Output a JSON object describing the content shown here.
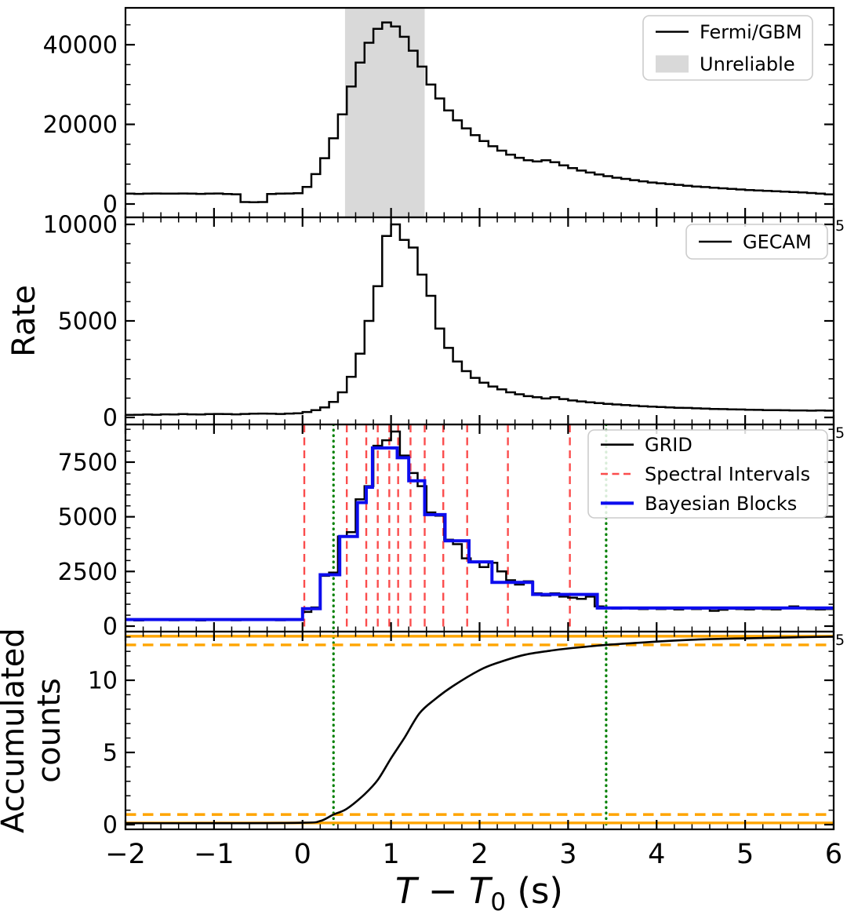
{
  "figure": {
    "xlabel": "T − T0 (s)",
    "xlabel_parts": [
      "T",
      " − ",
      "T",
      "0",
      " (s)"
    ],
    "x_range": [
      -2,
      6
    ],
    "x_tick_values": [
      -2,
      -1,
      0,
      1,
      2,
      3,
      4,
      5,
      6
    ],
    "x_tick_labels": [
      "−2",
      "−1",
      "0",
      "1",
      "2",
      "3",
      "4",
      "5",
      "6"
    ],
    "axis_offset_glyph": "5"
  },
  "colors": {
    "histogram": "#000000",
    "unreliable_fill": "#d9d9d9",
    "spectral_interval": "#fb4d4d",
    "bayesian_blocks": "#0d0dee",
    "t90_line": "#008000",
    "accumulation_bounds": "#ffa500",
    "legend_border": "#cccccc",
    "legend_bg": "#ffffff"
  },
  "panels": [
    {
      "id": "fermi",
      "ylabel": "",
      "y_tick_values": [
        0,
        20000,
        40000
      ],
      "y_tick_labels": [
        "0",
        "20000",
        "40000"
      ],
      "ylim": [
        -3400,
        49700
      ],
      "legend": [
        {
          "label": "Fermi/GBM",
          "swatch": "line",
          "color": "#000000"
        },
        {
          "label": "Unreliable",
          "swatch": "patch",
          "color": "#d9d9d9"
        }
      ]
    },
    {
      "id": "gecam",
      "ylabel": "Rate",
      "y_tick_values": [
        0,
        5000,
        10000
      ],
      "y_tick_labels": [
        "0",
        "5000",
        "10000"
      ],
      "ylim": [
        -370,
        10370
      ],
      "legend": [
        {
          "label": "GECAM",
          "swatch": "line",
          "color": "#000000"
        }
      ]
    },
    {
      "id": "grid",
      "ylabel": "",
      "y_tick_values": [
        0,
        2500,
        5000,
        7500
      ],
      "y_tick_labels": [
        "0",
        "2500",
        "5000",
        "7500"
      ],
      "ylim": [
        -250,
        9220
      ],
      "legend": [
        {
          "label": "GRID",
          "swatch": "line",
          "color": "#000000"
        },
        {
          "label": "Spectral Intervals",
          "swatch": "dashed",
          "color": "#fb4d4d"
        },
        {
          "label": "Bayesian Blocks",
          "swatch": "thickline",
          "color": "#0d0dee"
        }
      ]
    },
    {
      "id": "accumulated",
      "ylabel": "",
      "ylabel_lines": [
        "Accumulated",
        "counts"
      ],
      "y_tick_values": [
        0,
        5,
        10
      ],
      "y_tick_labels": [
        "0",
        "5",
        "10"
      ],
      "ylim": [
        -0.33,
        13.37
      ],
      "legend": []
    }
  ],
  "chart_data": [
    {
      "type": "histogram",
      "name": "Fermi/GBM",
      "bin_start": -2.0,
      "bin_width": 0.1,
      "rate": [
        2600,
        2550,
        2600,
        2650,
        2600,
        2600,
        2650,
        2600,
        2550,
        2600,
        2650,
        2500,
        2450,
        500,
        450,
        500,
        2500,
        2600,
        2650,
        2700,
        4300,
        7500,
        11500,
        16500,
        22500,
        29500,
        35500,
        40500,
        44000,
        45600,
        44600,
        42000,
        38500,
        34500,
        30000,
        26500,
        23500,
        21000,
        19000,
        17300,
        15800,
        14500,
        13400,
        12400,
        11600,
        11000,
        10700,
        11000,
        10500,
        9700,
        9000,
        8400,
        7900,
        7400,
        7000,
        6600,
        6300,
        6000,
        5700,
        5400,
        5200,
        5000,
        4800,
        4600,
        4400,
        4250,
        4100,
        3950,
        3800,
        3650,
        3500,
        3400,
        3300,
        3200,
        3100,
        3000,
        2900,
        2750,
        2600,
        2400
      ],
      "unreliable_interval": [
        0.48,
        1.38
      ]
    },
    {
      "type": "histogram",
      "name": "GECAM",
      "bin_start": -2.0,
      "bin_width": 0.1,
      "rate": [
        130,
        140,
        150,
        140,
        160,
        150,
        170,
        160,
        150,
        170,
        180,
        170,
        160,
        180,
        190,
        200,
        190,
        180,
        200,
        210,
        280,
        380,
        520,
        800,
        1300,
        2100,
        3300,
        5000,
        6800,
        9400,
        10000,
        9200,
        8800,
        7400,
        6300,
        4600,
        3600,
        2900,
        2400,
        2050,
        1800,
        1600,
        1450,
        1300,
        1200,
        1100,
        1050,
        980,
        1050,
        950,
        880,
        830,
        780,
        740,
        700,
        670,
        640,
        610,
        580,
        560,
        540,
        520,
        500,
        490,
        470,
        460,
        440,
        430,
        420,
        410,
        400,
        390,
        380,
        380,
        370,
        360,
        360,
        350,
        360,
        350
      ]
    },
    {
      "type": "histogram",
      "name": "GRID",
      "bin_start": -2.0,
      "bin_width": 0.1,
      "rate": [
        280,
        260,
        280,
        300,
        280,
        270,
        290,
        280,
        260,
        280,
        300,
        290,
        270,
        280,
        300,
        290,
        280,
        270,
        290,
        280,
        650,
        850,
        2300,
        2450,
        4100,
        4300,
        5800,
        6400,
        8250,
        8500,
        8900,
        7800,
        7000,
        6400,
        5200,
        5050,
        3950,
        3750,
        3100,
        2950,
        2700,
        2900,
        2500,
        2100,
        1900,
        2050,
        1500,
        1400,
        1500,
        1350,
        1300,
        1250,
        1350,
        900,
        850,
        800,
        850,
        800,
        780,
        820,
        780,
        800,
        760,
        820,
        780,
        800,
        700,
        750,
        800,
        780,
        760,
        800,
        780,
        760,
        820,
        900,
        850,
        780,
        760,
        780
      ],
      "spectral_intervals": [
        0.02,
        0.5,
        0.72,
        0.85,
        0.98,
        1.08,
        1.22,
        1.38,
        1.59,
        1.86,
        2.32,
        3.02
      ],
      "bayesian_blocks": {
        "edges": [
          -2.0,
          0.0,
          0.2,
          0.42,
          0.62,
          0.72,
          0.79,
          1.07,
          1.2,
          1.38,
          1.61,
          1.88,
          2.14,
          2.6,
          3.33,
          6.0
        ],
        "rates": [
          300,
          800,
          2350,
          4100,
          5650,
          6350,
          8150,
          7700,
          6650,
          5100,
          3900,
          2940,
          2000,
          1450,
          830
        ]
      },
      "t90_lines": [
        0.35,
        3.43
      ]
    },
    {
      "type": "line",
      "name": "Accumulated counts",
      "x": [
        -2.0,
        -1.0,
        0.0,
        0.2,
        0.35,
        0.5,
        0.7,
        0.85,
        1.0,
        1.15,
        1.32,
        1.5,
        1.7,
        2.0,
        2.2,
        2.5,
        2.8,
        3.0,
        3.43,
        3.8,
        4.2,
        4.6,
        5.0,
        5.5,
        6.0
      ],
      "y": [
        0.1,
        0.1,
        0.13,
        0.25,
        0.7,
        1.1,
        2.1,
        3.1,
        4.6,
        6.0,
        7.7,
        8.7,
        9.6,
        10.7,
        11.2,
        11.75,
        12.05,
        12.2,
        12.45,
        12.6,
        12.75,
        12.85,
        12.9,
        12.97,
        13.02
      ],
      "green_dotted_x": [
        0.35,
        3.43
      ],
      "orange_solid_y": [
        0.12,
        13.05
      ],
      "orange_dashed_y": [
        0.7,
        12.45
      ]
    }
  ]
}
